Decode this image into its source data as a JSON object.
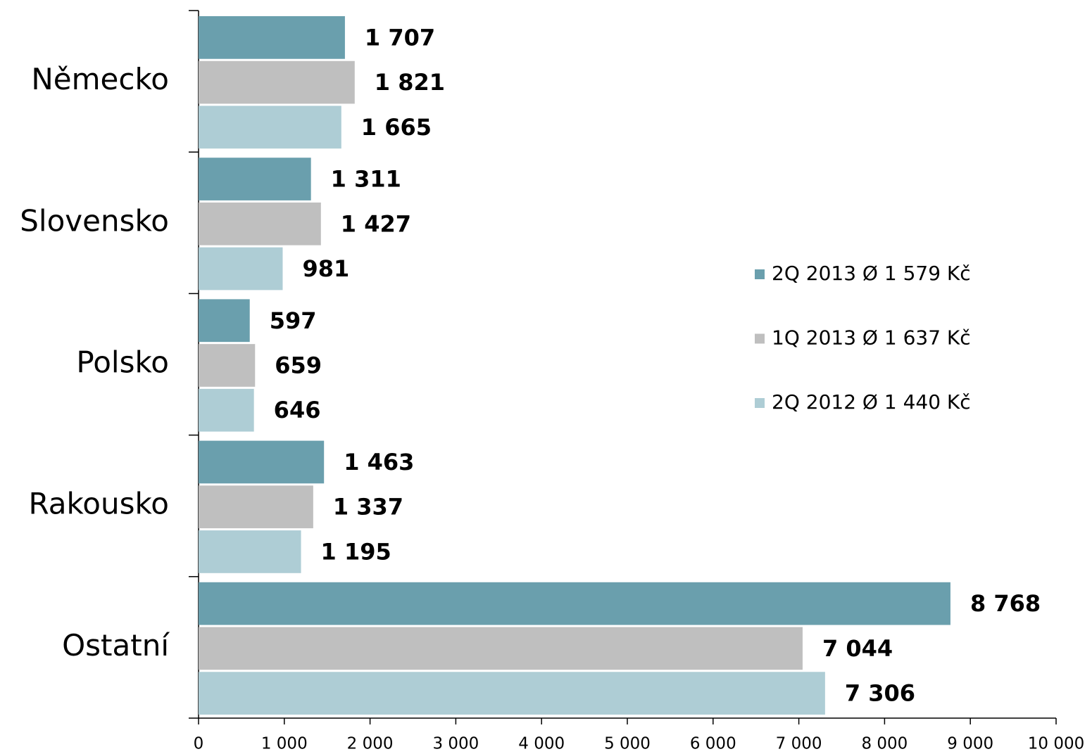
{
  "chart_data": {
    "type": "bar",
    "orientation": "horizontal",
    "categories": [
      "Německo",
      "Slovensko",
      "Polsko",
      "Rakousko",
      "Ostatní"
    ],
    "series": [
      {
        "name": "2Q 2013 Ø 1 579 Kč",
        "color": "#6a9fad",
        "values": [
          1707,
          1311,
          597,
          1463,
          8768
        ],
        "value_labels": [
          "1 707",
          "1 311",
          "597",
          "1 463",
          "8 768"
        ]
      },
      {
        "name": "1Q 2013 Ø 1 637 Kč",
        "color": "#bfbfbf",
        "values": [
          1821,
          1427,
          659,
          1337,
          7044
        ],
        "value_labels": [
          "1 821",
          "1 427",
          "659",
          "1 337",
          "7 044"
        ]
      },
      {
        "name": "2Q 2012 Ø 1 440 Kč",
        "color": "#aecdd5",
        "values": [
          1665,
          981,
          646,
          1195,
          7306
        ],
        "value_labels": [
          "1 665",
          "981",
          "646",
          "1 195",
          "7 306"
        ]
      }
    ],
    "xlim": [
      0,
      10000
    ],
    "xticks": [
      0,
      {
        "value": 1000,
        "label": "1 000"
      },
      {
        "value": 2000,
        "label": "2 000"
      },
      {
        "value": 3000,
        "label": "3 000"
      },
      {
        "value": 4000,
        "label": "4 000"
      },
      {
        "value": 5000,
        "label": "5 000"
      },
      {
        "value": 6000,
        "label": "6 000"
      },
      {
        "value": 7000,
        "label": "7 000"
      },
      {
        "value": 8000,
        "label": "8 000"
      },
      {
        "value": 9000,
        "label": "9 000"
      },
      {
        "value": 10000,
        "label": "10 000"
      }
    ],
    "legend": "right"
  }
}
